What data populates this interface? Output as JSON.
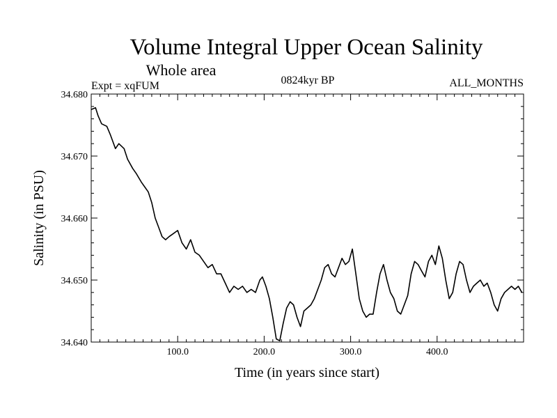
{
  "chart_data": {
    "type": "line",
    "title": "Volume Integral Upper Ocean Salinity",
    "subtitle": "Whole area",
    "expt_label": "Expt = xqFUM",
    "period_label": "0824kyr BP",
    "months_label": "ALL_MONTHS",
    "xlabel": "Time (in years since start)",
    "ylabel": "Salinity (in PSU)",
    "xlim": [
      0,
      500
    ],
    "ylim": [
      34.64,
      34.68
    ],
    "x_ticks": [
      100,
      200,
      300,
      400
    ],
    "x_tick_labels": [
      "100.0",
      "200.0",
      "300.0",
      "400.0"
    ],
    "y_ticks": [
      34.64,
      34.65,
      34.66,
      34.67,
      34.68
    ],
    "y_tick_labels": [
      "34.640",
      "34.650",
      "34.660",
      "34.670",
      "34.680"
    ],
    "grid": false,
    "series": [
      {
        "name": "Salinity",
        "x": [
          0,
          5,
          8,
          12,
          18,
          22,
          28,
          32,
          38,
          42,
          48,
          52,
          58,
          62,
          66,
          70,
          74,
          78,
          82,
          86,
          90,
          95,
          100,
          105,
          110,
          115,
          120,
          125,
          130,
          135,
          140,
          145,
          150,
          155,
          160,
          165,
          170,
          175,
          180,
          185,
          190,
          195,
          198,
          202,
          206,
          210,
          214,
          218,
          222,
          226,
          230,
          234,
          238,
          242,
          246,
          250,
          254,
          258,
          262,
          266,
          270,
          274,
          278,
          282,
          286,
          290,
          294,
          298,
          302,
          306,
          310,
          314,
          318,
          322,
          326,
          330,
          334,
          338,
          342,
          346,
          350,
          354,
          358,
          362,
          366,
          370,
          374,
          378,
          382,
          386,
          390,
          394,
          398,
          402,
          406,
          410,
          414,
          418,
          422,
          426,
          430,
          434,
          438,
          442,
          446,
          450,
          454,
          458,
          462,
          466,
          470,
          474,
          478,
          482,
          486,
          490,
          494,
          498
        ],
        "values": [
          34.6775,
          34.6778,
          34.6765,
          34.6752,
          34.6748,
          34.6735,
          34.6712,
          34.672,
          34.6712,
          34.6695,
          34.668,
          34.6672,
          34.6658,
          34.665,
          34.6642,
          34.6625,
          34.66,
          34.6585,
          34.657,
          34.6565,
          34.657,
          34.6575,
          34.658,
          34.656,
          34.655,
          34.6565,
          34.6545,
          34.654,
          34.653,
          34.652,
          34.6525,
          34.651,
          34.651,
          34.6495,
          34.648,
          34.649,
          34.6485,
          34.649,
          34.648,
          34.6485,
          34.648,
          34.65,
          34.6505,
          34.649,
          34.647,
          34.644,
          34.6405,
          34.6402,
          34.643,
          34.6455,
          34.6465,
          34.646,
          34.644,
          34.6425,
          34.645,
          34.6455,
          34.646,
          34.647,
          34.6485,
          34.65,
          34.652,
          34.6525,
          34.651,
          34.6505,
          34.652,
          34.6535,
          34.6525,
          34.653,
          34.655,
          34.651,
          34.647,
          34.645,
          34.644,
          34.6445,
          34.6445,
          34.648,
          34.651,
          34.6525,
          34.65,
          34.648,
          34.647,
          34.645,
          34.6445,
          34.646,
          34.6475,
          34.651,
          34.653,
          34.6525,
          34.6515,
          34.6505,
          34.653,
          34.654,
          34.6525,
          34.6555,
          34.6535,
          34.65,
          34.647,
          34.648,
          34.651,
          34.653,
          34.6525,
          34.65,
          34.648,
          34.649,
          34.6495,
          34.65,
          34.649,
          34.6495,
          34.648,
          34.646,
          34.645,
          34.647,
          34.648,
          34.6485,
          34.649,
          34.6485,
          34.649,
          34.648
        ]
      }
    ]
  }
}
